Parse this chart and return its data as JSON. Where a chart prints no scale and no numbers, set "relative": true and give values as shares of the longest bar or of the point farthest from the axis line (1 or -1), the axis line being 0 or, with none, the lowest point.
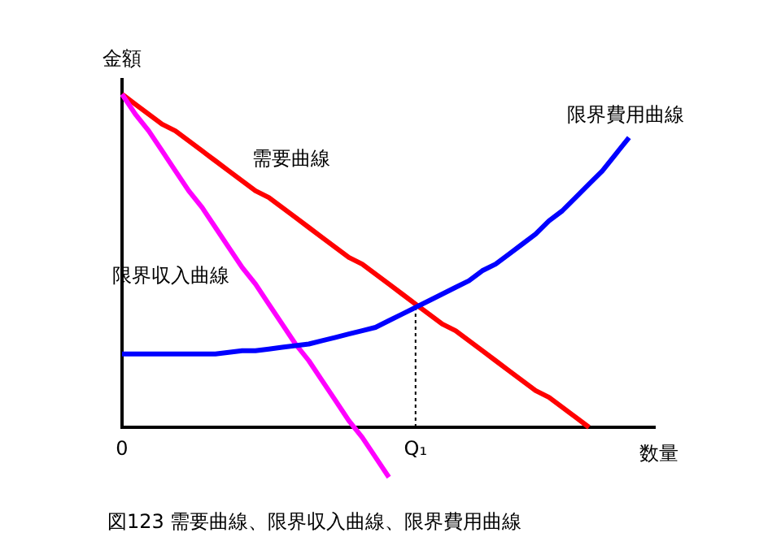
{
  "chart_data": {
    "type": "line",
    "relative": true,
    "xlabel": "数量",
    "ylabel": "金額",
    "annotations": [
      "図123 需要曲線、限界収入曲線、限界費用曲線"
    ],
    "categories": [
      "0",
      null,
      null,
      null,
      null,
      null,
      null,
      null,
      null,
      null,
      null,
      null,
      null,
      null,
      null,
      null,
      null,
      null,
      null,
      null,
      null,
      null,
      "Q₁",
      null,
      null,
      null,
      null,
      null,
      null,
      null,
      null,
      null,
      null,
      null,
      null,
      null,
      null,
      null,
      null,
      null,
      null
    ],
    "ref_lines": [
      {
        "axis": "x",
        "value": "Q₁",
        "label": null,
        "line_style": "dotted",
        "color": "#000000"
      }
    ],
    "series": [
      {
        "name": "需要曲線",
        "color": "#ff0000",
        "values": [
          1.0,
          0.97,
          0.94,
          0.91,
          0.89,
          0.86,
          0.83,
          0.8,
          0.77,
          0.74,
          0.71,
          0.69,
          0.66,
          0.63,
          0.6,
          0.57,
          0.54,
          0.51,
          0.49,
          0.46,
          0.43,
          0.4,
          0.37,
          0.34,
          0.31,
          0.29,
          0.26,
          0.23,
          0.2,
          0.17,
          0.14,
          0.11,
          0.09,
          0.06,
          0.03,
          0,
          null,
          null,
          null,
          null,
          null
        ]
      },
      {
        "name": "限界収入曲線",
        "color": "#ff00ff",
        "values": [
          1.0,
          0.94,
          0.89,
          0.83,
          0.77,
          0.71,
          0.66,
          0.6,
          0.54,
          0.48,
          0.43,
          0.37,
          0.31,
          0.25,
          0.2,
          0.14,
          0.08,
          0.02,
          -0.03,
          -0.09,
          -0.15,
          null,
          null,
          null,
          null,
          null,
          null,
          null,
          null,
          null,
          null,
          null,
          null,
          null,
          null,
          null,
          null,
          null,
          null,
          null,
          null
        ]
      },
      {
        "name": "限界費用曲線",
        "color": "#0000ff",
        "values": [
          0.22,
          0.22,
          0.22,
          0.22,
          0.22,
          0.22,
          0.22,
          0.22,
          0.225,
          0.23,
          0.23,
          0.235,
          0.24,
          0.245,
          0.25,
          0.26,
          0.27,
          0.28,
          0.29,
          0.3,
          0.32,
          0.34,
          0.36,
          0.38,
          0.4,
          0.42,
          0.44,
          0.47,
          0.49,
          0.52,
          0.55,
          0.58,
          0.62,
          0.65,
          0.69,
          0.73,
          0.77,
          0.82,
          0.87,
          null,
          null
        ]
      }
    ]
  }
}
